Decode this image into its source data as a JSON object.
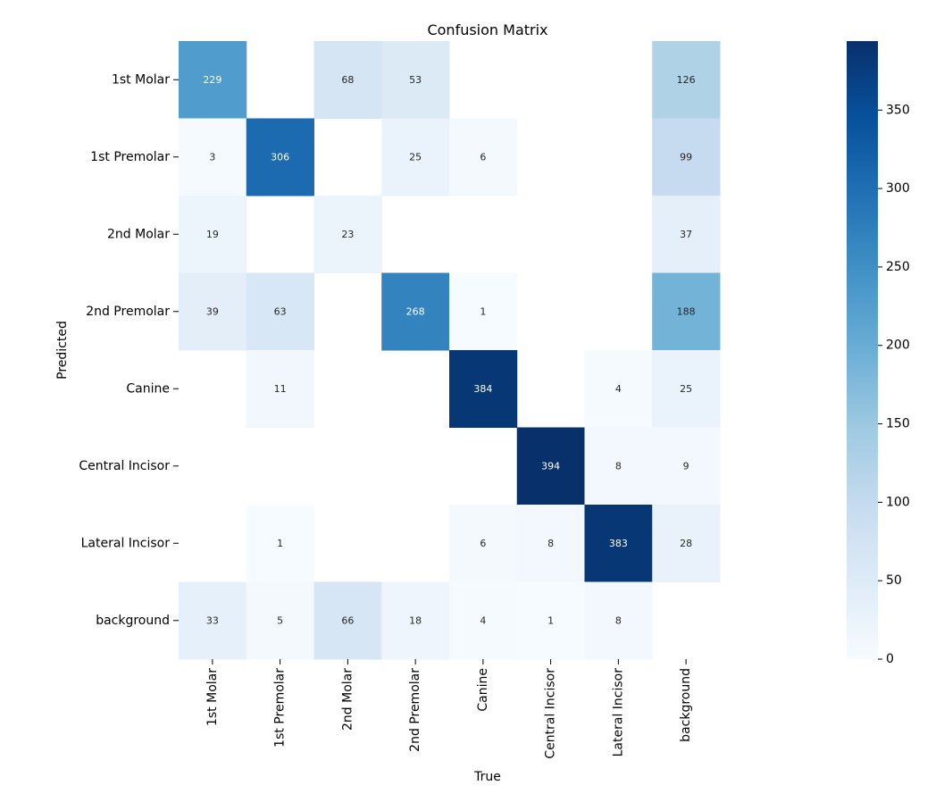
{
  "chart_data": {
    "type": "heatmap",
    "title": "Confusion Matrix",
    "xlabel": "True",
    "ylabel": "Predicted",
    "x_categories": [
      "1st Molar",
      "1st Premolar",
      "2nd Molar",
      "2nd Premolar",
      "Canine",
      "Central Incisor",
      "Lateral Incisor",
      "background"
    ],
    "y_categories": [
      "1st Molar",
      "1st Premolar",
      "2nd Molar",
      "2nd Premolar",
      "Canine",
      "Central Incisor",
      "Lateral Incisor",
      "background"
    ],
    "values": [
      [
        229,
        null,
        68,
        53,
        null,
        null,
        null,
        126
      ],
      [
        3,
        306,
        null,
        25,
        6,
        null,
        null,
        99
      ],
      [
        19,
        null,
        23,
        null,
        null,
        null,
        null,
        37
      ],
      [
        39,
        63,
        null,
        268,
        1,
        null,
        null,
        188
      ],
      [
        null,
        11,
        null,
        null,
        384,
        null,
        4,
        25
      ],
      [
        null,
        null,
        null,
        null,
        null,
        394,
        8,
        9
      ],
      [
        null,
        1,
        null,
        null,
        6,
        8,
        383,
        28
      ],
      [
        33,
        5,
        66,
        18,
        4,
        1,
        8,
        null
      ]
    ],
    "colormap": "Blues",
    "colorbar": {
      "min": 0,
      "max": 394,
      "ticks": [
        0,
        50,
        100,
        150,
        200,
        250,
        300,
        350
      ]
    },
    "grid": false
  }
}
